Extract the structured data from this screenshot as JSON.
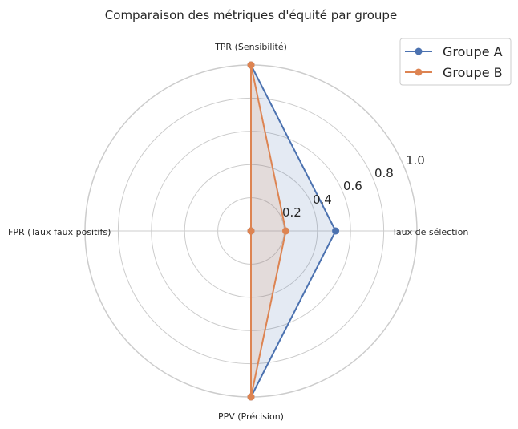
{
  "chart_data": {
    "type": "radar",
    "title": "Comparaison des métriques d'équité par groupe",
    "categories": [
      "Taux de sélection",
      "TPR (Sensibilité)",
      "FPR (Taux faux positifs)",
      "PPV (Précision)"
    ],
    "series": [
      {
        "name": "Groupe A",
        "color": "#4c72b0",
        "values": [
          0.51,
          1.0,
          0.0,
          1.0
        ]
      },
      {
        "name": "Groupe B",
        "color": "#dd8452",
        "values": [
          0.21,
          1.0,
          0.0,
          1.0
        ]
      }
    ],
    "radial_ticks": [
      "0.2",
      "0.4",
      "0.6",
      "0.8",
      "1.0"
    ],
    "rlim": [
      0,
      1.0
    ],
    "grid": true,
    "legend_position": "upper right"
  }
}
